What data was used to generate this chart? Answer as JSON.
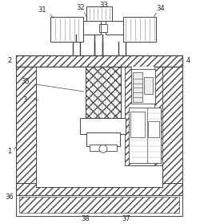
{
  "bg_color": "#ffffff",
  "line_color": "#444444",
  "lw": 0.7,
  "figsize": [
    2.5,
    2.79
  ],
  "dpi": 100
}
